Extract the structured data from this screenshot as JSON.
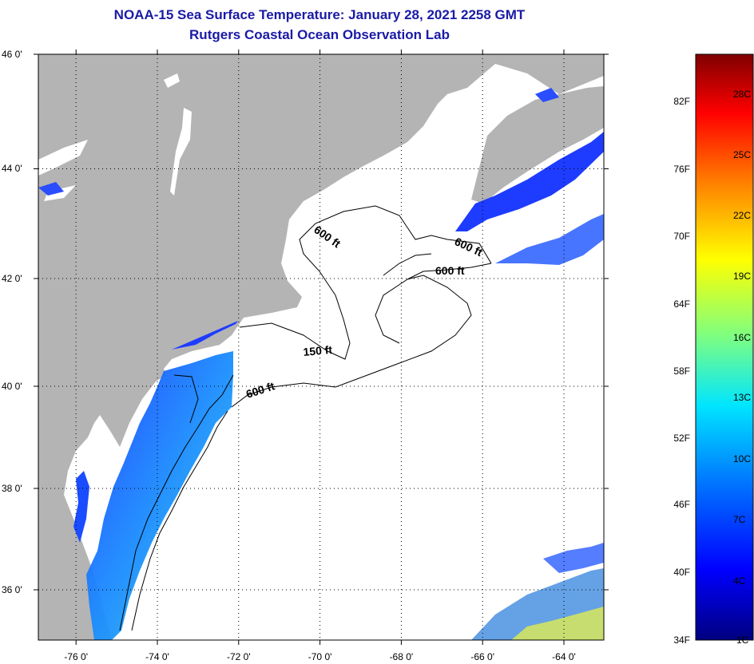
{
  "header": {
    "title": "NOAA-15 Sea Surface Temperature:  January 28, 2021 2258 GMT",
    "subtitle": "Rutgers Coastal Ocean Observation Lab"
  },
  "map": {
    "lat_labels": [
      "46 0'",
      "44 0'",
      "42 0'",
      "40 0'",
      "38 0'",
      "36 0'"
    ],
    "lon_labels": [
      "-76 0'",
      "-74 0'",
      "-72 0'",
      "-70 0'",
      "-68 0'",
      "-66 0'",
      "-64 0'"
    ],
    "contour_labels": [
      "600 ft",
      "600 ft",
      "600 ft",
      "150 ft",
      "600 ft"
    ],
    "colors": {
      "land": "#b4b4b4",
      "cloud": "#ffffff",
      "contour": "#000000"
    }
  },
  "colorbar": {
    "fahrenheit_labels": [
      "82F",
      "76F",
      "70F",
      "64F",
      "58F",
      "52F",
      "46F",
      "40F",
      "34F"
    ],
    "celsius_labels": [
      "28C",
      "25C",
      "22C",
      "19C",
      "16C",
      "13C",
      "10C",
      "7C",
      "4C",
      "1C"
    ],
    "colors": [
      "#00007f",
      "#0000ff",
      "#007fff",
      "#00ffff",
      "#7fff7f",
      "#ffff00",
      "#ff7f00",
      "#ff0000",
      "#7f0000"
    ]
  }
}
